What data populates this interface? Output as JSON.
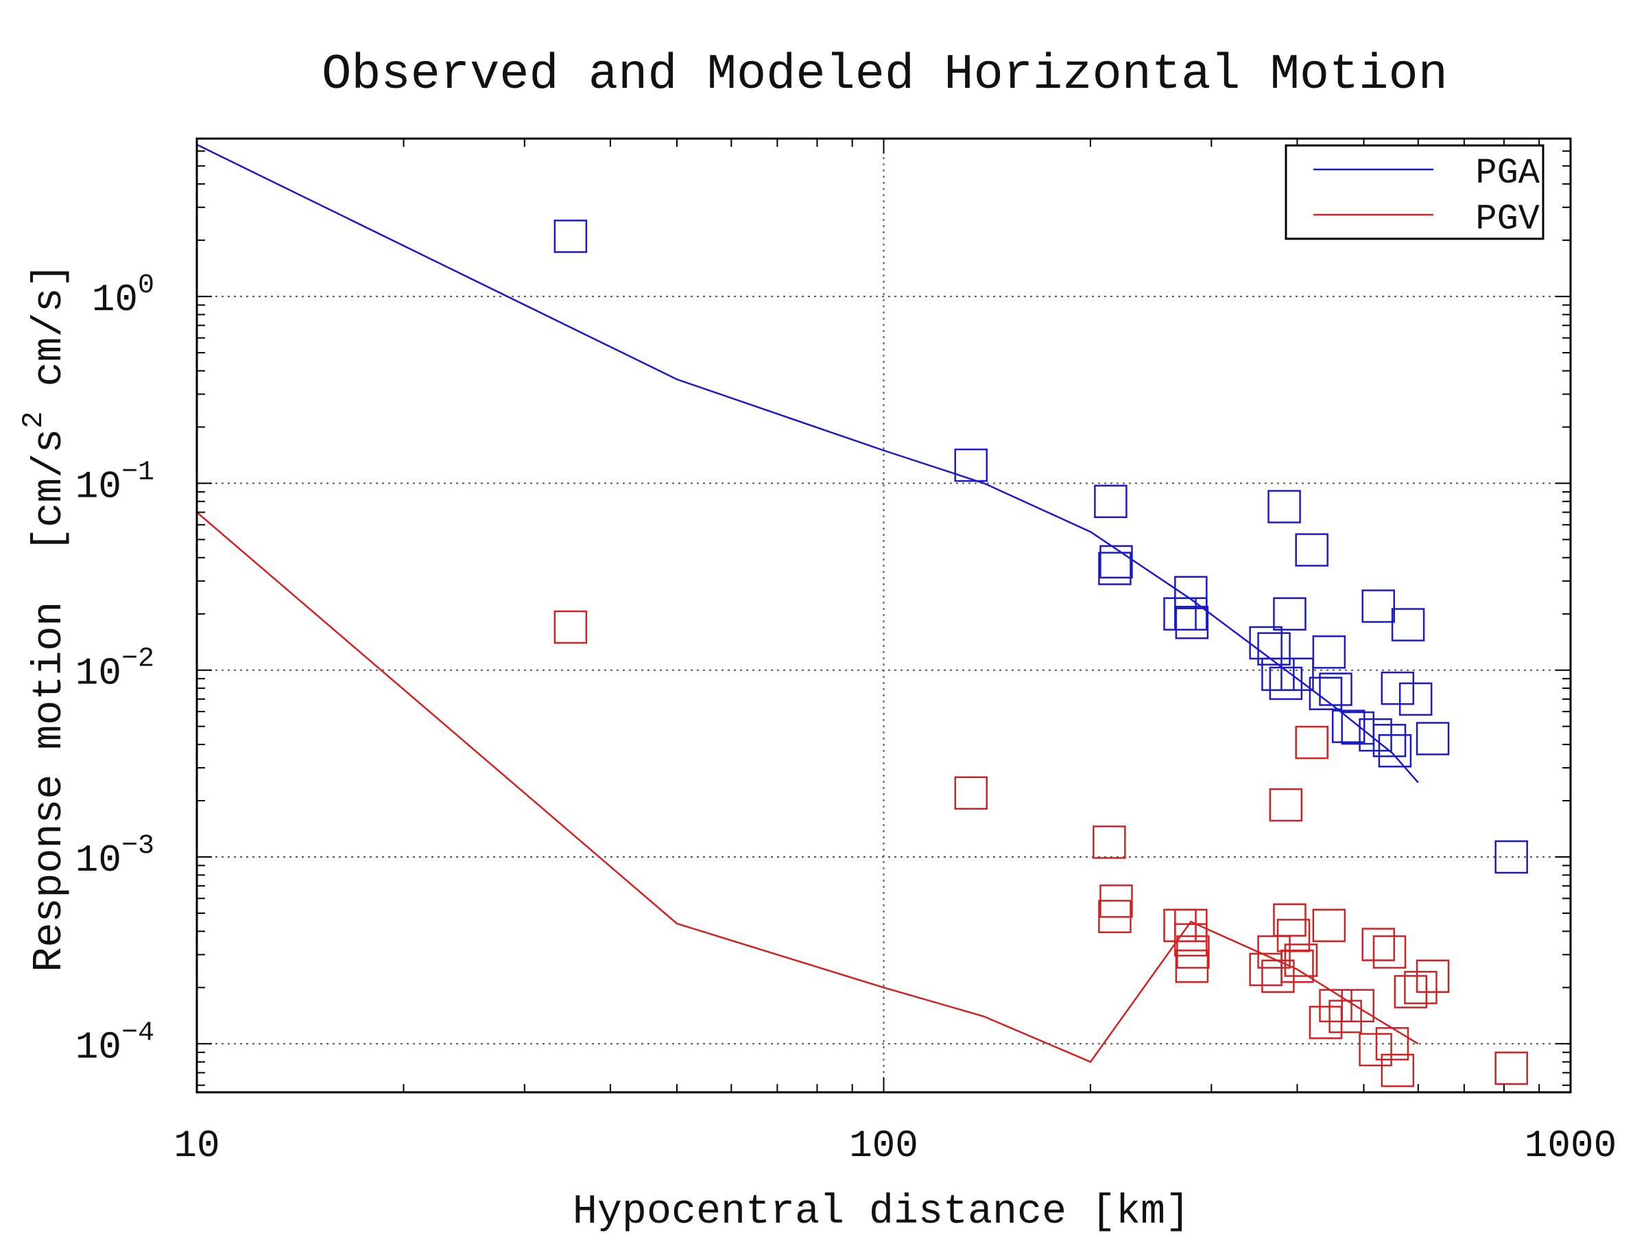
{
  "chart_data": {
    "type": "scatter",
    "title": "Observed and Modeled Horizontal Motion",
    "xlabel": "Hypocentral distance [km]",
    "ylabel_prefix": "Response motion",
    "ylabel_unit_main": "[cm/s",
    "ylabel_unit_sup": "2",
    "ylabel_unit_rest": "cm/s]",
    "xscale": "log",
    "yscale": "log",
    "xlim": [
      10,
      1000
    ],
    "ylim": [
      5.5e-05,
      7
    ],
    "grid": true,
    "legend_position": "top-right",
    "x_ticks": [
      {
        "value": 10,
        "label": "10"
      },
      {
        "value": 100,
        "label": "100"
      },
      {
        "value": 1000,
        "label": "1000"
      }
    ],
    "y_ticks": [
      {
        "value": 1,
        "base": "10",
        "exp": "0"
      },
      {
        "value": 0.1,
        "base": "10",
        "exp": "−1"
      },
      {
        "value": 0.01,
        "base": "10",
        "exp": "−2"
      },
      {
        "value": 0.001,
        "base": "10",
        "exp": "−3"
      },
      {
        "value": 0.0001,
        "base": "10",
        "exp": "−4"
      }
    ],
    "series": [
      {
        "name": "PGA",
        "color": "#1a1acc",
        "model_line": [
          [
            10,
            6.5
          ],
          [
            50,
            0.36
          ],
          [
            100,
            0.15
          ],
          [
            140,
            0.1
          ],
          [
            200,
            0.055
          ],
          [
            280,
            0.024
          ],
          [
            350,
            0.013
          ],
          [
            450,
            0.0065
          ],
          [
            550,
            0.0036
          ],
          [
            600,
            0.0025
          ]
        ],
        "observed": [
          [
            35,
            2.1
          ],
          [
            134,
            0.125
          ],
          [
            214,
            0.08
          ],
          [
            218,
            0.038
          ],
          [
            217,
            0.035
          ],
          [
            280,
            0.026
          ],
          [
            270,
            0.02
          ],
          [
            280,
            0.02
          ],
          [
            281,
            0.018
          ],
          [
            383,
            0.075
          ],
          [
            390,
            0.02
          ],
          [
            420,
            0.044
          ],
          [
            360,
            0.014
          ],
          [
            370,
            0.013
          ],
          [
            375,
            0.0095
          ],
          [
            385,
            0.0085
          ],
          [
            400,
            0.0095
          ],
          [
            445,
            0.0125
          ],
          [
            440,
            0.0075
          ],
          [
            455,
            0.0079
          ],
          [
            490,
            0.0049
          ],
          [
            475,
            0.005
          ],
          [
            520,
            0.0045
          ],
          [
            545,
            0.0042
          ],
          [
            555,
            0.0037
          ],
          [
            525,
            0.022
          ],
          [
            580,
            0.0175
          ],
          [
            560,
            0.008
          ],
          [
            595,
            0.007
          ],
          [
            630,
            0.0043
          ],
          [
            820,
            0.001
          ]
        ]
      },
      {
        "name": "PGV",
        "color": "#d42020",
        "model_line": [
          [
            10,
            0.07
          ],
          [
            50,
            0.00044
          ],
          [
            100,
            0.0002
          ],
          [
            140,
            0.00014
          ],
          [
            200,
            8e-05
          ],
          [
            280,
            0.00045
          ],
          [
            400,
            0.00025
          ],
          [
            500,
            0.00015
          ],
          [
            600,
            0.0001
          ]
        ],
        "observed": [
          [
            35,
            0.017
          ],
          [
            134,
            0.0022
          ],
          [
            213,
            0.0012
          ],
          [
            218,
            0.00058
          ],
          [
            217,
            0.00048
          ],
          [
            270,
            0.00043
          ],
          [
            280,
            0.00043
          ],
          [
            280,
            0.00036
          ],
          [
            282,
            0.00031
          ],
          [
            281,
            0.00026
          ],
          [
            385,
            0.0019
          ],
          [
            390,
            0.00046
          ],
          [
            395,
            0.00038
          ],
          [
            445,
            0.00043
          ],
          [
            360,
            0.00025
          ],
          [
            370,
            0.00031
          ],
          [
            375,
            0.00023
          ],
          [
            405,
            0.00028
          ],
          [
            400,
            0.00026
          ],
          [
            440,
            0.00013
          ],
          [
            455,
            0.00016
          ],
          [
            470,
            0.00014
          ],
          [
            490,
            0.00016
          ],
          [
            520,
            9.3e-05
          ],
          [
            550,
            0.0001
          ],
          [
            560,
            7.2e-05
          ],
          [
            525,
            0.00034
          ],
          [
            545,
            0.00031
          ],
          [
            585,
            0.00019
          ],
          [
            605,
            0.0002
          ],
          [
            630,
            0.00023
          ],
          [
            820,
            7.4e-05
          ],
          [
            420,
            0.0041
          ]
        ]
      }
    ]
  }
}
